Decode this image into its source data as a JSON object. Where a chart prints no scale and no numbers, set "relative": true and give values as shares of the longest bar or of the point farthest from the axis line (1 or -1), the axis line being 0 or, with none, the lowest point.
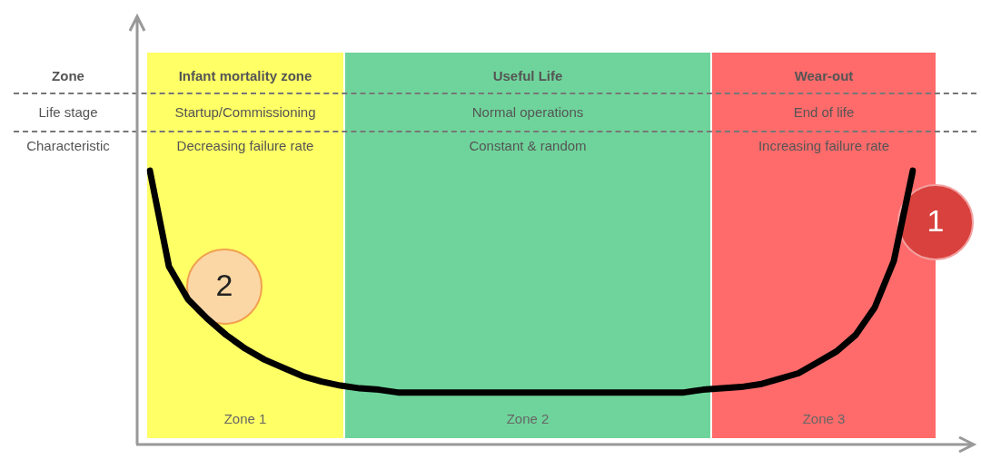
{
  "chart_data": {
    "type": "line",
    "relative": true,
    "categories": [
      null,
      null,
      null,
      null,
      null,
      null,
      null,
      null,
      null,
      null,
      null,
      null,
      null,
      null,
      null,
      null,
      null,
      null,
      null,
      null,
      null,
      null,
      null,
      null,
      null,
      null,
      null,
      null,
      null,
      null,
      null,
      null,
      null,
      null,
      null,
      null,
      null,
      null,
      null,
      null,
      null
    ],
    "legend": false,
    "marker": "none",
    "line_style": "solid",
    "series": [
      {
        "color": "#000000",
        "values": [
          1.0,
          0.65,
          0.53,
          0.46,
          0.4,
          0.35,
          0.31,
          0.28,
          0.25,
          0.23,
          0.215,
          0.205,
          0.2,
          0.19,
          0.19,
          0.19,
          0.19,
          0.19,
          0.19,
          0.19,
          0.19,
          0.19,
          0.19,
          0.19,
          0.19,
          0.19,
          0.19,
          0.19,
          0.19,
          0.2,
          0.205,
          0.21,
          0.22,
          0.24,
          0.26,
          0.3,
          0.34,
          0.4,
          0.5,
          0.67,
          1.0
        ]
      }
    ],
    "annotations": [
      "Zone",
      "Infant mortality zone",
      "Useful Life",
      "Wear-out",
      "Life stage",
      "Startup/Commissioning",
      "Normal operations",
      "End of life",
      "Characteristic",
      "Decreasing failure rate",
      "Constant & random",
      "Increasing failure rate",
      "Zone 1",
      "Zone 2",
      "Zone 3",
      "2",
      "1"
    ]
  }
}
